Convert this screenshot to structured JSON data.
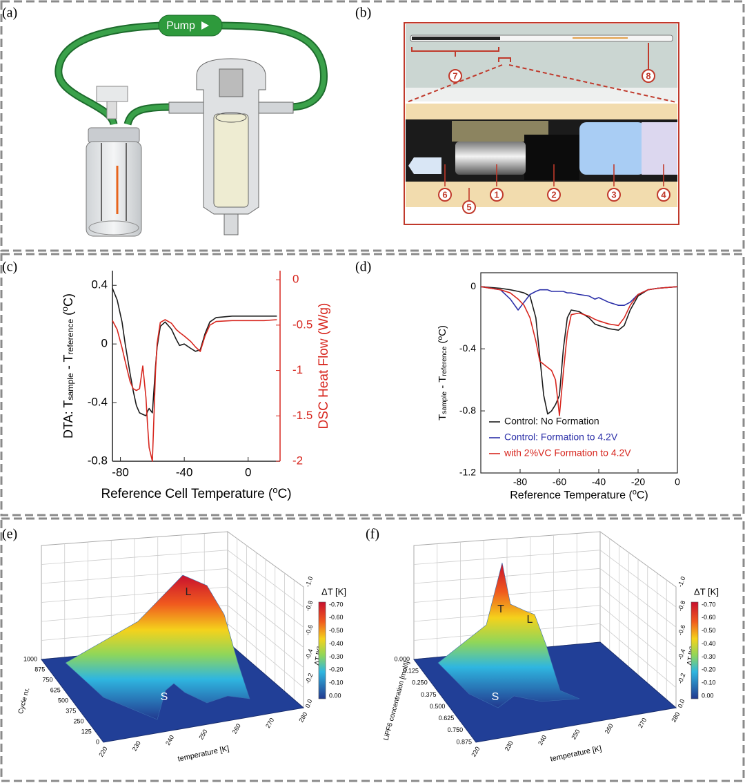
{
  "panel_labels": [
    "(a)",
    "(b)",
    "(c)",
    "(d)",
    "(e)",
    "(f)"
  ],
  "pump_diagram": {
    "pump_label": "Pump"
  },
  "cell_diagram": {
    "callouts": [
      "1",
      "2",
      "3",
      "4",
      "5",
      "6",
      "7",
      "8"
    ]
  },
  "chart_data": [
    {
      "type": "line",
      "ylabel": [
        "DTA: T",
        "sample",
        " - T",
        "reference",
        " (",
        "o",
        "C)"
      ],
      "y2label": "DSC Heat Flow (W/g)",
      "xlabel": [
        "Reference Cell Temperature (",
        "o",
        "C)"
      ],
      "xlim": [
        -85,
        20
      ],
      "xticks": [
        -80,
        -40,
        0
      ],
      "ylim": [
        -0.8,
        0.5
      ],
      "yticks": [
        0.4,
        0,
        -0.4,
        -0.8
      ],
      "y2lim": [
        -2,
        0.1
      ],
      "y2ticks": [
        0,
        -0.5,
        -1,
        -1.5,
        -2
      ],
      "y2_color": "#d7261e",
      "x": [
        -85,
        -82,
        -79,
        -77,
        -74,
        -72,
        -70,
        -68,
        -66,
        -64,
        -63,
        -62,
        -60,
        -58,
        -57,
        -55,
        -52,
        -48,
        -45,
        -43,
        -40,
        -36,
        -33,
        -30,
        -27,
        -24,
        -20,
        -10,
        0,
        10,
        18
      ],
      "series": [
        {
          "color": "#1a1a1a",
          "values": [
            0.38,
            0.3,
            0.15,
            0.0,
            -0.2,
            -0.32,
            -0.42,
            -0.47,
            -0.48,
            -0.49,
            -0.46,
            -0.44,
            -0.47,
            -0.15,
            -0.02,
            0.12,
            0.15,
            0.1,
            0.03,
            -0.01,
            0.0,
            -0.03,
            -0.05,
            -0.04,
            0.07,
            0.15,
            0.18,
            0.19,
            0.19,
            0.19,
            0.19
          ]
        },
        {
          "color": "#d7261e",
          "axis": "y2",
          "values": [
            -0.45,
            -0.55,
            -0.75,
            -0.9,
            -1.12,
            -1.2,
            -1.22,
            -1.2,
            -0.95,
            -1.3,
            -1.6,
            -1.85,
            -2.0,
            -1.0,
            -0.7,
            -0.47,
            -0.44,
            -0.48,
            -0.55,
            -0.58,
            -0.62,
            -0.68,
            -0.74,
            -0.79,
            -0.62,
            -0.5,
            -0.46,
            -0.45,
            -0.45,
            -0.45,
            -0.44
          ]
        }
      ]
    },
    {
      "type": "line",
      "ylabel": [
        "T",
        "sample",
        " - T",
        "reference",
        " (",
        "o",
        "C)"
      ],
      "xlabel": [
        "Reference Temperature (",
        "o",
        "C)"
      ],
      "xlim": [
        -100,
        0
      ],
      "xticks": [
        -80,
        -60,
        -40,
        -20,
        0
      ],
      "ylim": [
        -1.2,
        0.09
      ],
      "yticks": [
        0,
        -0.4,
        -0.8,
        -1.2
      ],
      "legend": "lower left",
      "x": [
        -100,
        -90,
        -85,
        -81,
        -78,
        -75,
        -72,
        -70,
        -68,
        -66,
        -64,
        -62,
        -60,
        -58,
        -56,
        -54,
        -50,
        -45,
        -42,
        -40,
        -35,
        -30,
        -27,
        -24,
        -20,
        -15,
        -10,
        0
      ],
      "series": [
        {
          "name": "Control: No Formation",
          "color": "#1a1a1a",
          "values": [
            0,
            -0.01,
            -0.02,
            -0.03,
            -0.04,
            -0.06,
            -0.2,
            -0.45,
            -0.7,
            -0.82,
            -0.8,
            -0.76,
            -0.7,
            -0.4,
            -0.2,
            -0.15,
            -0.16,
            -0.2,
            -0.24,
            -0.25,
            -0.27,
            -0.28,
            -0.25,
            -0.15,
            -0.06,
            -0.02,
            -0.01,
            0
          ]
        },
        {
          "name": "Control: Formation to 4.2V",
          "color": "#2b2fa8",
          "values": [
            0,
            -0.02,
            -0.08,
            -0.15,
            -0.1,
            -0.05,
            -0.03,
            -0.02,
            -0.02,
            -0.02,
            -0.03,
            -0.03,
            -0.03,
            -0.03,
            -0.04,
            -0.04,
            -0.05,
            -0.06,
            -0.08,
            -0.07,
            -0.1,
            -0.12,
            -0.12,
            -0.1,
            -0.05,
            -0.02,
            -0.01,
            0
          ]
        },
        {
          "name": "with 2%VC Formation to 4.2V",
          "color": "#d7261e",
          "values": [
            0,
            -0.02,
            -0.04,
            -0.08,
            -0.12,
            -0.2,
            -0.35,
            -0.48,
            -0.5,
            -0.52,
            -0.54,
            -0.6,
            -0.83,
            -0.55,
            -0.3,
            -0.18,
            -0.17,
            -0.19,
            -0.21,
            -0.22,
            -0.24,
            -0.25,
            -0.2,
            -0.12,
            -0.05,
            -0.02,
            -0.01,
            0
          ]
        }
      ]
    }
  ],
  "surface_plots": [
    {
      "y_axis_label": "Cycle nr.",
      "y_ticks": [
        "1000",
        "875",
        "750",
        "625",
        "500",
        "375",
        "250",
        "125",
        "0"
      ],
      "x_axis_label": "temperature [K]",
      "x_ticks": [
        "220",
        "230",
        "240",
        "250",
        "260",
        "270",
        "280"
      ],
      "z_axis_label": "ΔT [K]",
      "z_ticks": [
        "-1.0",
        "-0.8",
        "-0.6",
        "-0.4",
        "-0.2",
        "0.0"
      ],
      "colorbar_title": "ΔT [K]",
      "colorbar_ticks": [
        "-0.70",
        "-0.60",
        "-0.50",
        "-0.40",
        "-0.30",
        "-0.20",
        "-0.10",
        "0.00"
      ],
      "annotations": [
        "L",
        "S"
      ]
    },
    {
      "y_axis_label": "LiPF6 concentration [mol/l]",
      "y_ticks": [
        "0.000",
        "0.125",
        "0.250",
        "0.375",
        "0.500",
        "0.625",
        "0.750",
        "0.875"
      ],
      "x_axis_label": "temperature [K]",
      "x_ticks": [
        "220",
        "230",
        "240",
        "250",
        "260",
        "270",
        "280"
      ],
      "z_axis_label": "ΔT [K]",
      "z_ticks": [
        "-1.0",
        "-0.8",
        "-0.6",
        "-0.4",
        "-0.2",
        "0.0"
      ],
      "colorbar_title": "ΔT [K]",
      "colorbar_ticks": [
        "-0.70",
        "-0.60",
        "-0.50",
        "-0.40",
        "-0.30",
        "-0.20",
        "-0.10",
        "0.00"
      ],
      "annotations": [
        "T",
        "L",
        "S"
      ]
    }
  ]
}
